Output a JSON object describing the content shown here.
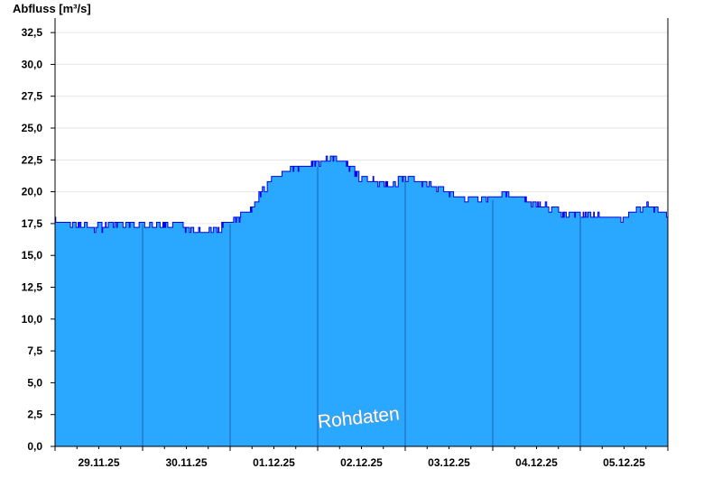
{
  "chart_data": {
    "type": "area",
    "ylabel": "Abfluss [m³/s]",
    "xlim": [
      0,
      7
    ],
    "ylim": [
      0,
      33.5
    ],
    "y_ticks": [
      0,
      2.5,
      5,
      7.5,
      10,
      12.5,
      15,
      17.5,
      20,
      22.5,
      25,
      27.5,
      30,
      32.5
    ],
    "y_tick_labels": [
      "0,0",
      "2,5",
      "5,0",
      "7,5",
      "10,0",
      "12,5",
      "15,0",
      "17,5",
      "20,0",
      "22,5",
      "25,0",
      "27,5",
      "30,0",
      "32,5"
    ],
    "x_tick_labels": [
      "29.11.25",
      "30.11.25",
      "01.12.25",
      "02.12.25",
      "03.12.25",
      "04.12.25",
      "05.12.25"
    ],
    "day_boundaries": [
      1,
      2,
      3,
      4,
      5,
      6
    ],
    "grid": true,
    "watermark": "Rohdaten",
    "colors": {
      "fill": "#2aa8ff",
      "line": "#0000e6",
      "day_line": "#1f5fae",
      "grid": "#e6e6e6",
      "axis": "#000000"
    },
    "series": [
      {
        "x": [
          0,
          0.125,
          0.25,
          0.375,
          0.5,
          0.625,
          0.75,
          0.875,
          1,
          1.125,
          1.25,
          1.375,
          1.5,
          1.625,
          1.75,
          1.875,
          2,
          2.125,
          2.25,
          2.375,
          2.5,
          2.625,
          2.75,
          2.875,
          3,
          3.125,
          3.25,
          3.375,
          3.5,
          3.625,
          3.75,
          3.875,
          4,
          4.125,
          4.25,
          4.375,
          4.5,
          4.625,
          4.75,
          4.875,
          5,
          5.125,
          5.25,
          5.375,
          5.5,
          5.625,
          5.75,
          5.875,
          6,
          6.125,
          6.25,
          6.375,
          6.5,
          6.625,
          6.75,
          6.875,
          7
        ],
        "values": [
          17.6,
          17.5,
          17.4,
          17.2,
          17.2,
          17.3,
          17.4,
          17.3,
          17.6,
          17.5,
          17.4,
          17.5,
          16.9,
          16.8,
          17.0,
          17.1,
          17.6,
          18.1,
          18.7,
          20.2,
          21.1,
          21.6,
          22.0,
          22.0,
          22.1,
          22.7,
          22.6,
          21.8,
          21.0,
          20.8,
          20.7,
          20.6,
          21.1,
          21.0,
          20.6,
          20.3,
          19.8,
          19.6,
          19.5,
          19.5,
          19.5,
          19.8,
          19.6,
          19.3,
          19.0,
          18.8,
          18.3,
          18.3,
          18.2,
          18.2,
          18.0,
          17.9,
          18.0,
          18.4,
          18.8,
          18.8,
          18.2
        ]
      }
    ]
  }
}
